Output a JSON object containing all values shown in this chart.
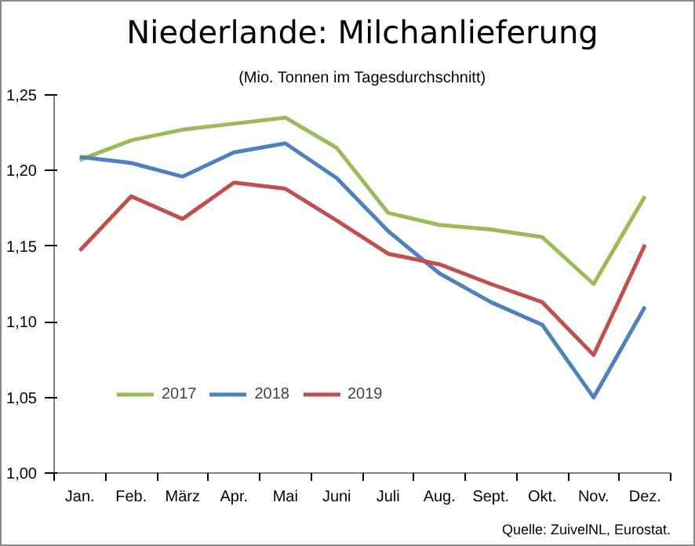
{
  "chart_data": {
    "type": "line",
    "title": "Niederlande: Milchanlieferung",
    "subtitle": "(Mio. Tonnen im Tagesdurchschnitt)",
    "categories": [
      "Jan.",
      "Feb.",
      "März",
      "Apr.",
      "Mai",
      "Juni",
      "Juli",
      "Aug.",
      "Sept.",
      "Okt.",
      "Nov.",
      "Dez."
    ],
    "series": [
      {
        "name": "2017",
        "color": "#9bbb59",
        "values": [
          1.207,
          1.22,
          1.227,
          1.231,
          1.235,
          1.215,
          1.172,
          1.164,
          1.161,
          1.156,
          1.125,
          1.183
        ]
      },
      {
        "name": "2018",
        "color": "#4f81bd",
        "values": [
          1.209,
          1.205,
          1.196,
          1.212,
          1.218,
          1.195,
          1.16,
          1.132,
          1.113,
          1.098,
          1.05,
          1.11
        ]
      },
      {
        "name": "2019",
        "color": "#c0504d",
        "values": [
          1.147,
          1.183,
          1.168,
          1.192,
          1.188,
          1.167,
          1.145,
          1.138,
          1.125,
          1.113,
          1.078,
          1.151
        ]
      }
    ],
    "ylim": [
      1.0,
      1.25
    ],
    "yticks": [
      {
        "value": 1.0,
        "label": "1,00"
      },
      {
        "value": 1.05,
        "label": "1,05"
      },
      {
        "value": 1.1,
        "label": "1,10"
      },
      {
        "value": 1.15,
        "label": "1,15"
      },
      {
        "value": 1.2,
        "label": "1,20"
      },
      {
        "value": 1.25,
        "label": "1,25"
      }
    ],
    "grid": false,
    "legend": "bottom left",
    "marker": "none",
    "line_style": "solid",
    "annotations": [
      "Quelle: ZuivelNL, Eurostat."
    ]
  }
}
